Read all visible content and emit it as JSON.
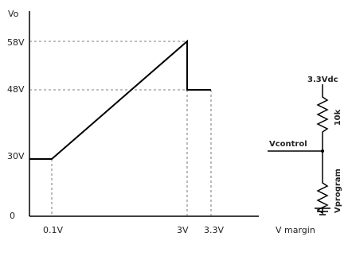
{
  "y_axis_label": "Vo",
  "x_axis_label": "V margin",
  "y_ticks": [
    "58V",
    "48V",
    "30V",
    "0"
  ],
  "x_ticks": [
    "0.1V",
    "3V",
    "3.3V"
  ],
  "circuit": {
    "supply": "3.3Vdc",
    "top_resistor": "10k",
    "node": "Vcontrol",
    "bottom_resistor": "Vprogram"
  }
}
